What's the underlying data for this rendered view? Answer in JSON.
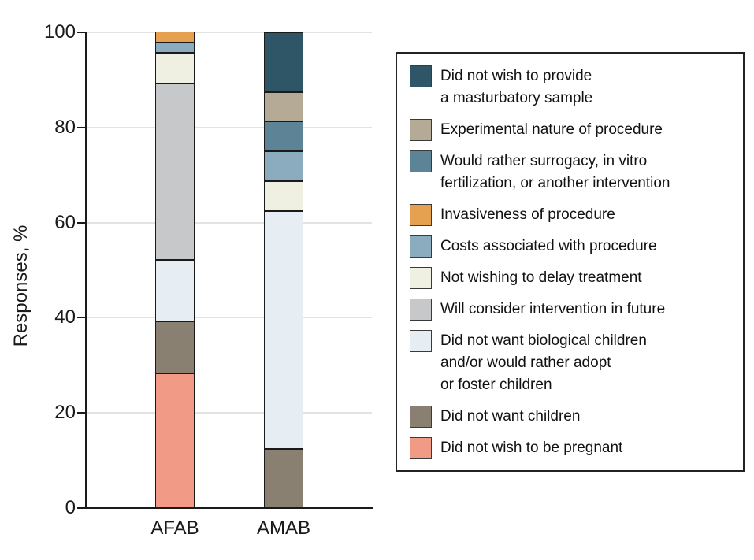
{
  "chart_data": {
    "type": "bar",
    "subtype": "stacked-vertical",
    "title": "",
    "xlabel": "",
    "ylabel": "Responses, %",
    "ylim": [
      0,
      100
    ],
    "yticks": [
      0,
      20,
      40,
      60,
      80,
      100
    ],
    "grid": true,
    "legend_position": "right",
    "categories": [
      "AFAB",
      "AMAB"
    ],
    "series": [
      {
        "name": "Did not wish to provide a masturbatory sample",
        "color": "#2F5666",
        "values": [
          0,
          12.5
        ]
      },
      {
        "name": "Experimental nature of procedure",
        "color": "#B4AA95",
        "values": [
          0,
          6.25
        ]
      },
      {
        "name": "Would rather surrogacy, in vitro fertilization, or another intervention",
        "color": "#5C8396",
        "values": [
          0,
          6.25
        ]
      },
      {
        "name": "Invasiveness of procedure",
        "color": "#E5A050",
        "values": [
          2.2,
          0
        ]
      },
      {
        "name": "Costs associated with procedure",
        "color": "#8AACBE",
        "values": [
          2.2,
          6.25
        ]
      },
      {
        "name": "Not wishing to delay treatment",
        "color": "#EFEFE2",
        "values": [
          6.5,
          6.25
        ]
      },
      {
        "name": "Will consider intervention in future",
        "color": "#C6C8CA",
        "values": [
          37.0,
          0
        ]
      },
      {
        "name": "Did not want biological children and/or would rather adopt or foster children",
        "color": "#E6EEF3",
        "values": [
          13.0,
          50.0
        ]
      },
      {
        "name": "Did not want children",
        "color": "#8A8071",
        "values": [
          10.9,
          12.5
        ]
      },
      {
        "name": "Did not wish to be pregnant",
        "color": "#F19A85",
        "values": [
          28.3,
          0
        ]
      }
    ]
  },
  "legend": {
    "items": [
      {
        "label": "Did not wish to provide\na masturbatory sample",
        "color": "#2F5666"
      },
      {
        "label": "Experimental nature of procedure",
        "color": "#B4AA95"
      },
      {
        "label": "Would rather surrogacy, in vitro\nfertilization, or another intervention",
        "color": "#5C8396"
      },
      {
        "label": "Invasiveness of procedure",
        "color": "#E5A050"
      },
      {
        "label": "Costs associated with procedure",
        "color": "#8AACBE"
      },
      {
        "label": "Not wishing to delay treatment",
        "color": "#EFEFE2"
      },
      {
        "label": "Will consider intervention in future",
        "color": "#C6C8CA"
      },
      {
        "label": "Did not want biological children\nand/or would rather adopt\nor foster children",
        "color": "#E6EEF3"
      },
      {
        "label": "Did not want children",
        "color": "#8A8071"
      },
      {
        "label": "Did not wish to be pregnant",
        "color": "#F19A85"
      }
    ]
  }
}
